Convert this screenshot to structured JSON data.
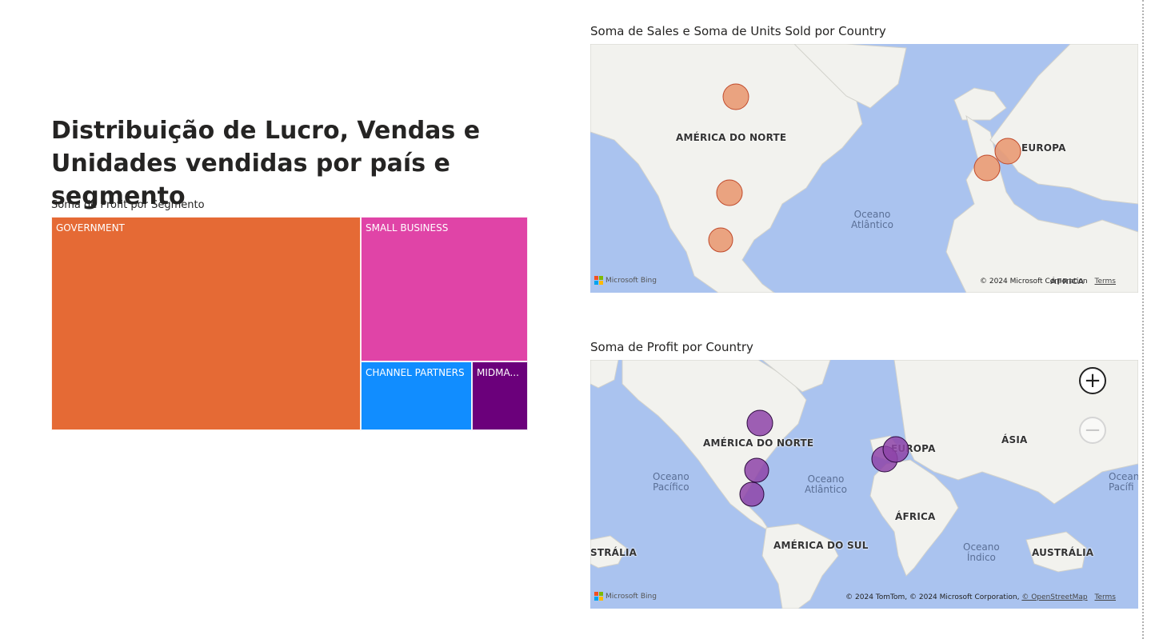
{
  "report": {
    "title": "Distribuição de Lucro, Vendas e Unidades vendidas por país e segmento"
  },
  "treemap": {
    "title": "Soma de Profit por Segmento",
    "segments": [
      {
        "name": "GOVERNMENT",
        "color": "#E56A35"
      },
      {
        "name": "SMALL BUSINESS",
        "color": "#E044A7"
      },
      {
        "name": "CHANNEL PARTNERS",
        "color": "#118DFF"
      },
      {
        "name": "MIDMA...",
        "color": "#6B007B"
      }
    ]
  },
  "map_sales": {
    "title": "Soma de Sales e Soma de Units Sold por Country",
    "bubble_color": "#E99A73",
    "bubble_stroke": "#C0492A",
    "labels": {
      "north_america": "AMÉRICA DO NORTE",
      "europe": "EUROPA",
      "africa_partial": "ÁFRICA"
    },
    "ocean_atlantic": "Oceano\nAtlântico",
    "bing": "Microsoft Bing",
    "copyright": "© 2024 Microsoft Corporation",
    "terms": "Terms"
  },
  "map_profit": {
    "title": "Soma de Profit por Country",
    "bubble_color": "#8E44A8",
    "bubble_stroke": "#2B0A3D",
    "labels": {
      "north_america": "AMÉRICA DO NORTE",
      "europe": "EUROPA",
      "asia": "ÁSIA",
      "africa": "ÁFRICA",
      "south_america": "AMÉRICA DO SUL",
      "australia_left": "STRÁLIA",
      "australia": "AUSTRÁLIA"
    },
    "oceans": {
      "pacific_left": "Oceano\nPacífico",
      "atlantic": "Oceano\nAtlântico",
      "indian": "Oceano\nÍndico",
      "pacific_right": "Ocean\nPacífi"
    },
    "bing": "Microsoft Bing",
    "copyright_prefix": "© 2024 TomTom, © 2024 Microsoft Corporation,",
    "osm": "© OpenStreetMap",
    "terms": "Terms",
    "zoom_in": "+",
    "zoom_out": "−"
  }
}
